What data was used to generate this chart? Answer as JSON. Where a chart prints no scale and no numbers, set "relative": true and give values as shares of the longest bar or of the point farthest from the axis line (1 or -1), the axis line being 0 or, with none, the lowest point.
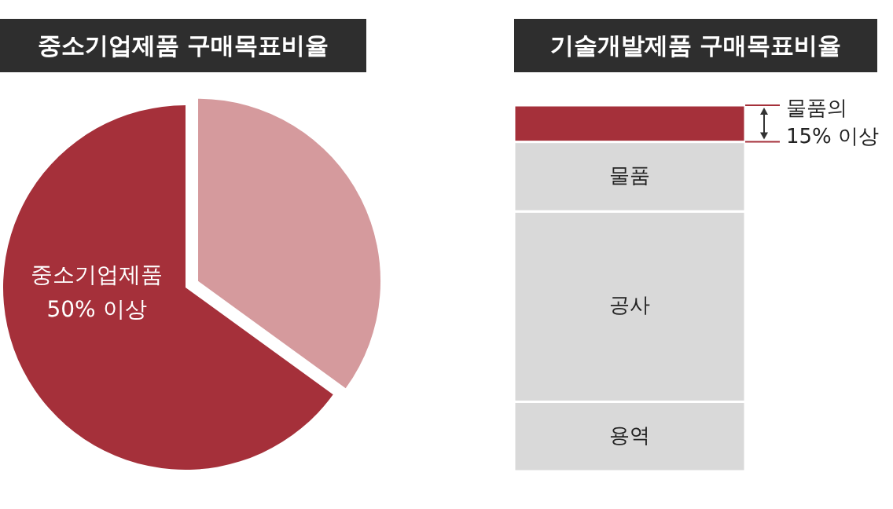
{
  "chart_data": [
    {
      "type": "pie",
      "title": "중소기업제품 구매목표비율",
      "categories": [
        "중소기업제품 50% 이상",
        null
      ],
      "values": [
        65,
        35
      ],
      "colors": [
        "#a5303a",
        "#d59a9d"
      ]
    },
    {
      "type": "bar",
      "title": "기술개발제품 구매목표비율",
      "stacked": true,
      "relative": true,
      "categories": [
        null
      ],
      "series": [
        {
          "name": "용역",
          "color": "#d9d9d9",
          "values": [
            0.19
          ]
        },
        {
          "name": "공사",
          "color": "#d9d9d9",
          "values": [
            0.52
          ]
        },
        {
          "name": "물품",
          "color": "#d9d9d9",
          "values": [
            0.19
          ]
        },
        {
          "name": "물품의 15% 이상",
          "color": "#a5303a",
          "values": [
            0.1
          ]
        }
      ]
    }
  ]
}
